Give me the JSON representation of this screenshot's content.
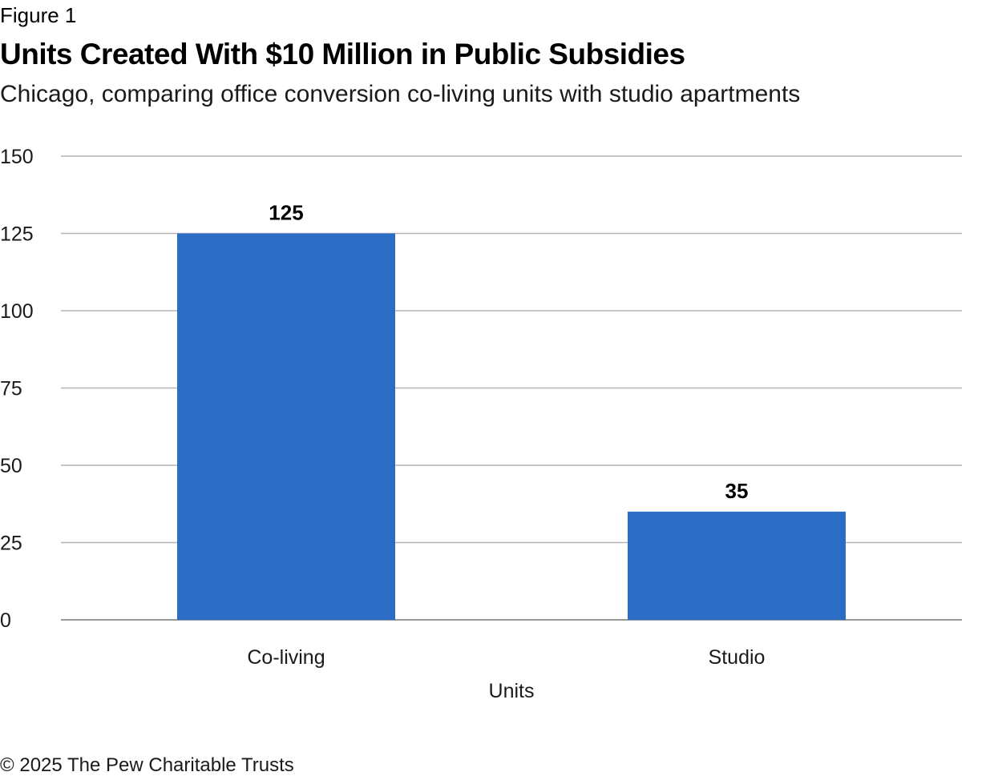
{
  "header": {
    "figure_label": "Figure 1",
    "title": "Units Created With $10 Million in Public Subsidies",
    "subtitle": "Chicago, comparing office conversion co-living units with studio apartments"
  },
  "footer": {
    "credit": "© 2025 The Pew Charitable Trusts"
  },
  "colors": {
    "bar": "#2b6cc4",
    "grid": "#b3b3b3",
    "axis": "#999999"
  },
  "chart_data": {
    "type": "bar",
    "categories": [
      "Co-living",
      "Studio"
    ],
    "values": [
      125,
      35
    ],
    "data_labels": [
      "125",
      "35"
    ],
    "title": "Units Created With $10 Million in Public Subsidies",
    "xlabel": "Units",
    "ylabel": "",
    "ylim": [
      0,
      150
    ],
    "yticks": [
      0,
      25,
      50,
      75,
      100,
      125,
      150
    ],
    "grid": true,
    "legend": "none"
  }
}
